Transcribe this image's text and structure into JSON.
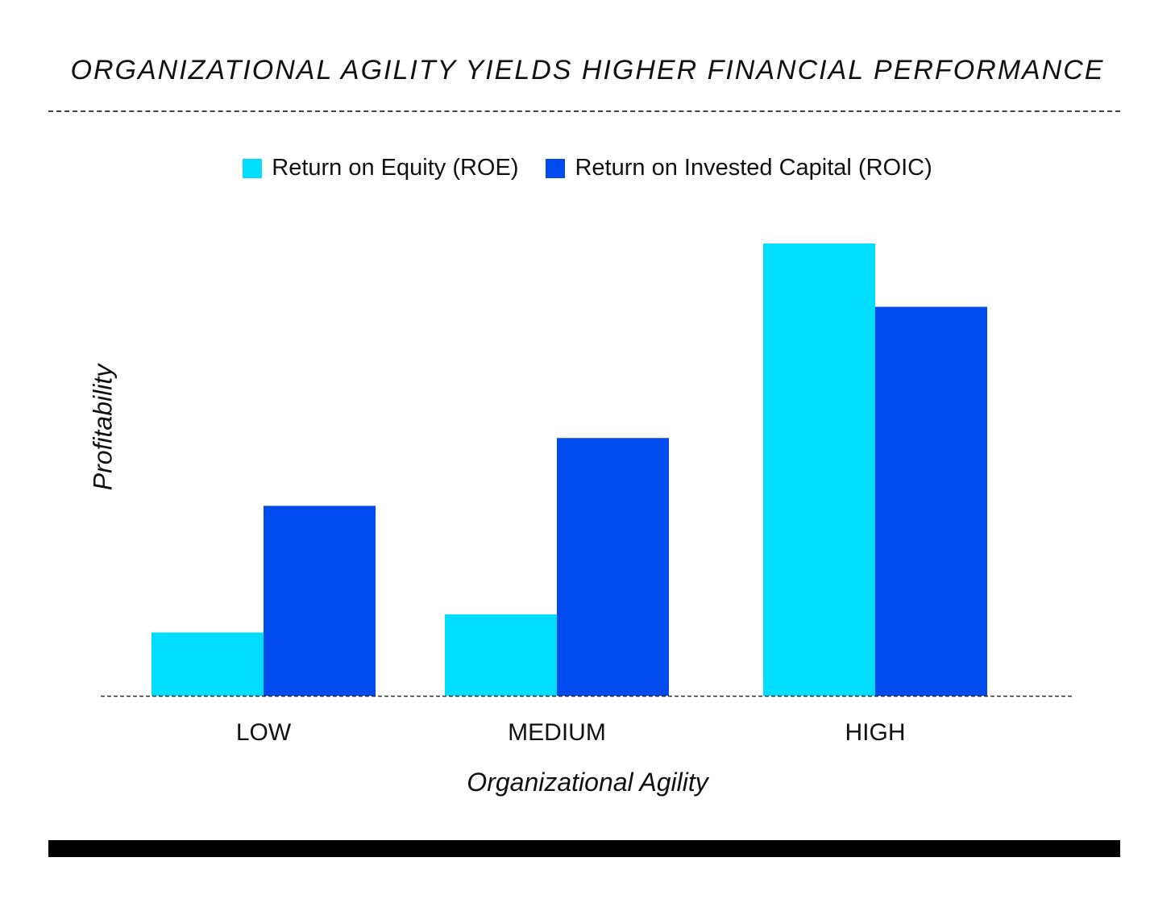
{
  "chart_data": {
    "type": "bar",
    "title": "ORGANIZATIONAL AGILITY YIELDS HIGHER FINANCIAL PERFORMANCE",
    "xlabel": "Organizational Agility",
    "ylabel": "Profitability",
    "categories": [
      "LOW",
      "MEDIUM",
      "HIGH"
    ],
    "series": [
      {
        "name": "Return on Equity (ROE)",
        "color": "#00DDFF",
        "values": [
          0.14,
          0.18,
          1.0
        ]
      },
      {
        "name": "Return on Invested Capital (ROIC)",
        "color": "#004BEE",
        "values": [
          0.42,
          0.57,
          0.86
        ]
      }
    ],
    "ylim": [
      0,
      1.0
    ],
    "grid": false,
    "legend_position": "top-center"
  }
}
